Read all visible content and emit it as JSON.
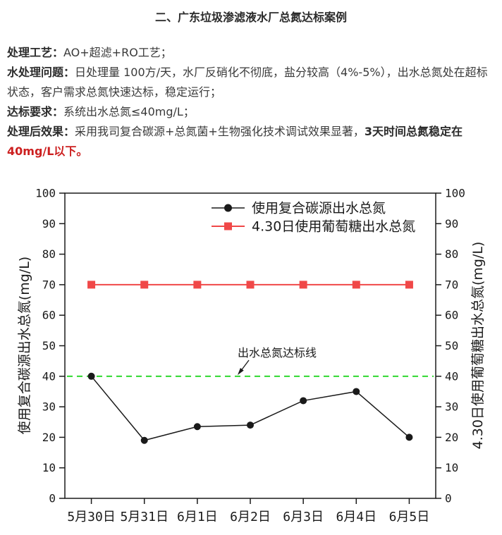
{
  "title": "二、广东垃圾渗滤液水厂总氮达标案例",
  "colors": {
    "body_text": "#3a3a3a",
    "highlight_red": "#cc1f1f",
    "series_black": "#1a1a1a",
    "series_red": "#f04848",
    "target_line_green": "#22d622"
  },
  "paragraphs": [
    {
      "segments": [
        {
          "text": "处理工艺：",
          "bold": true
        },
        {
          "text": "AO+超滤+RO工艺；"
        }
      ]
    },
    {
      "segments": [
        {
          "text": "水处理问题：",
          "bold": true
        },
        {
          "text": "日处理量 100方/天，水厂反硝化不彻底，盐分较高（4%-5%），出水总氮处在超标状态，客户需求总氮快速达标，稳定运行；"
        }
      ]
    },
    {
      "segments": [
        {
          "text": "达标要求：",
          "bold": true
        },
        {
          "text": "系统出水总氮≤40mg/L；"
        }
      ]
    },
    {
      "segments": [
        {
          "text": "处理后效果：",
          "bold": true
        },
        {
          "text": "采用我司复合碳源+总氮菌+生物强化技术调试效果显著，"
        },
        {
          "text": "3天时间总氮稳定在",
          "bold": true
        },
        {
          "text": "40mg/L以下。",
          "bold": true,
          "red": true
        }
      ]
    }
  ],
  "chart_data": {
    "type": "line",
    "categories": [
      "5月30日",
      "5月31日",
      "6月1日",
      "6月2日",
      "6月3日",
      "6月4日",
      "6月5日"
    ],
    "series": [
      {
        "name": "使用复合碳源出水总氮",
        "marker": "circle",
        "color": "#1a1a1a",
        "values": [
          40,
          19,
          23.5,
          24,
          32,
          35,
          20
        ]
      },
      {
        "name": "4.30日使用葡萄糖出水总氮",
        "marker": "square",
        "color": "#f04848",
        "values": [
          70,
          70,
          70,
          70,
          70,
          70,
          70
        ]
      }
    ],
    "ylim": [
      0,
      100
    ],
    "ytick_step": 10,
    "left_axis_label": "使用复合碳源出水总氮(mg/L)",
    "right_axis_label": "4.30日使用葡萄糖出水总氮(mg/L)",
    "xlabel": "",
    "grid": false,
    "legend_position": "top-inside",
    "reference_line": {
      "value": 40,
      "style": "dashed",
      "color": "#22d622",
      "label": "出水总氮达标线"
    }
  }
}
